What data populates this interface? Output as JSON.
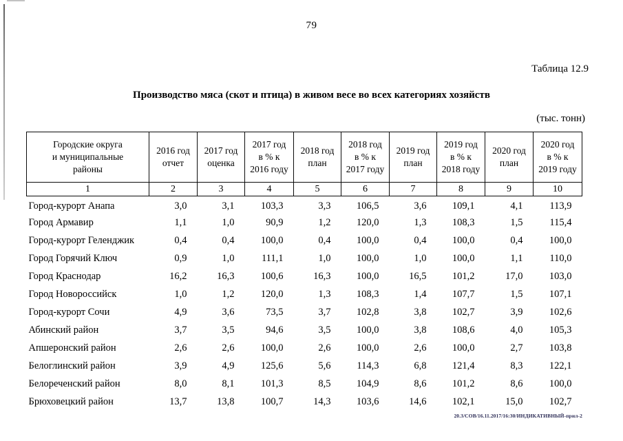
{
  "page": {
    "number": "79",
    "table_label": "Таблица 12.9",
    "title": "Производство мяса (скот и птица) в живом весе во всех категориях хозяйств",
    "units": "(тыс. тонн)",
    "footer": "20.3/СОВ/16.11.2017/16:30/ИНДИКАТИВНЫЙ-прил-2"
  },
  "table": {
    "columns": [
      {
        "label": "Городские округа\nи муниципальные\nрайоны",
        "num": "1"
      },
      {
        "label": "2016 год\nотчет",
        "num": "2"
      },
      {
        "label": "2017 год\nоценка",
        "num": "3"
      },
      {
        "label": "2017 год\nв % к\n2016 году",
        "num": "4"
      },
      {
        "label": "2018 год\nплан",
        "num": "5"
      },
      {
        "label": "2018 год\nв % к\n2017 году",
        "num": "6"
      },
      {
        "label": "2019 год\nплан",
        "num": "7"
      },
      {
        "label": "2019 год\nв % к\n2018 году",
        "num": "8"
      },
      {
        "label": "2020 год\nплан",
        "num": "9"
      },
      {
        "label": "2020 год\nв % к\n2019 году",
        "num": "10"
      }
    ],
    "rows": [
      {
        "name": "Город-курорт Анапа",
        "values": [
          "3,0",
          "3,1",
          "103,3",
          "3,3",
          "106,5",
          "3,6",
          "109,1",
          "4,1",
          "113,9"
        ]
      },
      {
        "name": "Город Армавир",
        "values": [
          "1,1",
          "1,0",
          "90,9",
          "1,2",
          "120,0",
          "1,3",
          "108,3",
          "1,5",
          "115,4"
        ]
      },
      {
        "name": "Город-курорт Геленджик",
        "values": [
          "0,4",
          "0,4",
          "100,0",
          "0,4",
          "100,0",
          "0,4",
          "100,0",
          "0,4",
          "100,0"
        ]
      },
      {
        "name": "Город Горячий Ключ",
        "values": [
          "0,9",
          "1,0",
          "111,1",
          "1,0",
          "100,0",
          "1,0",
          "100,0",
          "1,1",
          "110,0"
        ]
      },
      {
        "name": "Город Краснодар",
        "values": [
          "16,2",
          "16,3",
          "100,6",
          "16,3",
          "100,0",
          "16,5",
          "101,2",
          "17,0",
          "103,0"
        ]
      },
      {
        "name": "Город Новороссийск",
        "values": [
          "1,0",
          "1,2",
          "120,0",
          "1,3",
          "108,3",
          "1,4",
          "107,7",
          "1,5",
          "107,1"
        ]
      },
      {
        "name": "Город-курорт Сочи",
        "values": [
          "4,9",
          "3,6",
          "73,5",
          "3,7",
          "102,8",
          "3,8",
          "102,7",
          "3,9",
          "102,6"
        ]
      },
      {
        "name": "Абинский район",
        "values": [
          "3,7",
          "3,5",
          "94,6",
          "3,5",
          "100,0",
          "3,8",
          "108,6",
          "4,0",
          "105,3"
        ]
      },
      {
        "name": "Апшеронский район",
        "values": [
          "2,6",
          "2,6",
          "100,0",
          "2,6",
          "100,0",
          "2,6",
          "100,0",
          "2,7",
          "103,8"
        ]
      },
      {
        "name": "Белоглинский район",
        "values": [
          "3,9",
          "4,9",
          "125,6",
          "5,6",
          "114,3",
          "6,8",
          "121,4",
          "8,3",
          "122,1"
        ]
      },
      {
        "name": "Белореченский район",
        "values": [
          "8,0",
          "8,1",
          "101,3",
          "8,5",
          "104,9",
          "8,6",
          "101,2",
          "8,6",
          "100,0"
        ]
      },
      {
        "name": "Брюховецкий район",
        "values": [
          "13,7",
          "13,8",
          "100,7",
          "14,3",
          "103,6",
          "14,6",
          "102,1",
          "15,0",
          "102,7"
        ]
      }
    ]
  }
}
